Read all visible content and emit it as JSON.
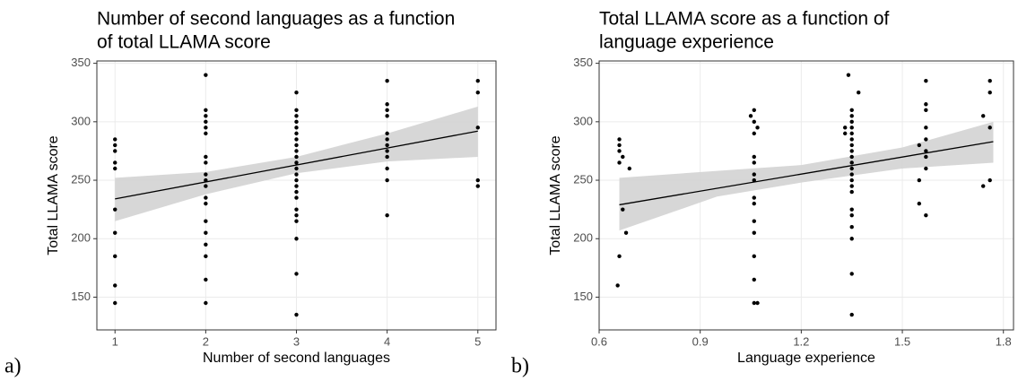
{
  "chart_data": [
    {
      "type": "scatter",
      "panel_label": "a)",
      "title": [
        "Number of second languages as a function",
        "of total LLAMA score"
      ],
      "x_label": "Number of second languages",
      "y_label": "Total LLAMA score",
      "xlim": [
        0.8,
        5.2
      ],
      "ylim": [
        122,
        352
      ],
      "xticks": [
        1,
        2,
        3,
        4,
        5
      ],
      "yticks": [
        150,
        200,
        250,
        300,
        350
      ],
      "grid": true,
      "color": "#000000",
      "x": [
        1,
        1,
        1,
        1,
        1,
        1,
        1,
        1,
        1,
        1,
        2,
        2,
        2,
        2,
        2,
        2,
        2,
        2,
        2,
        2,
        2,
        2,
        2,
        2,
        2,
        2,
        2,
        2,
        2,
        3,
        3,
        3,
        3,
        3,
        3,
        3,
        3,
        3,
        3,
        3,
        3,
        3,
        3,
        3,
        3,
        3,
        3,
        3,
        3,
        3,
        3,
        3,
        4,
        4,
        4,
        4,
        4,
        4,
        4,
        4,
        4,
        4,
        4,
        4,
        5,
        5,
        5,
        5,
        5
      ],
      "y": [
        285,
        280,
        275,
        265,
        260,
        225,
        205,
        185,
        160,
        145,
        340,
        310,
        305,
        300,
        295,
        290,
        270,
        265,
        255,
        250,
        245,
        235,
        230,
        215,
        205,
        195,
        185,
        165,
        145,
        325,
        310,
        305,
        300,
        295,
        290,
        285,
        280,
        275,
        270,
        265,
        260,
        255,
        250,
        245,
        240,
        235,
        225,
        220,
        215,
        200,
        170,
        135,
        335,
        315,
        310,
        305,
        290,
        285,
        280,
        275,
        270,
        260,
        250,
        220,
        335,
        325,
        295,
        250,
        245
      ],
      "fit": {
        "x": [
          1,
          5
        ],
        "y": [
          234,
          292
        ],
        "color": "#000000"
      },
      "band": {
        "x": [
          1,
          2,
          3,
          4,
          5
        ],
        "lower": [
          215,
          238,
          256,
          266,
          270
        ],
        "upper": [
          252,
          257,
          270,
          290,
          313
        ],
        "color": "#d3d3d3"
      }
    },
    {
      "type": "scatter",
      "panel_label": "b)",
      "title": [
        "Total LLAMA score as a function of",
        "language experience"
      ],
      "x_label": "Language experience",
      "y_label": "Total LLAMA score",
      "xlim": [
        0.6,
        1.83
      ],
      "ylim": [
        122,
        352
      ],
      "xticks": [
        0.6,
        0.9,
        1.2,
        1.5,
        1.8
      ],
      "yticks": [
        150,
        200,
        250,
        300,
        350
      ],
      "grid": true,
      "color": "#000000",
      "x": [
        0.66,
        0.66,
        0.66,
        0.67,
        0.66,
        0.655,
        0.66,
        0.67,
        0.68,
        0.69,
        1.05,
        1.06,
        1.06,
        1.06,
        1.06,
        1.06,
        1.06,
        1.06,
        1.06,
        1.06,
        1.06,
        1.06,
        1.06,
        1.06,
        1.06,
        1.07,
        1.07,
        1.34,
        1.35,
        1.35,
        1.35,
        1.35,
        1.35,
        1.35,
        1.35,
        1.35,
        1.35,
        1.35,
        1.35,
        1.35,
        1.35,
        1.35,
        1.35,
        1.35,
        1.35,
        1.35,
        1.35,
        1.35,
        1.35,
        1.37,
        1.33,
        1.33,
        1.55,
        1.55,
        1.55,
        1.57,
        1.57,
        1.57,
        1.57,
        1.57,
        1.57,
        1.57,
        1.57,
        1.57,
        1.74,
        1.74,
        1.76,
        1.76,
        1.76,
        1.76
      ],
      "y": [
        285,
        280,
        275,
        270,
        265,
        160,
        185,
        225,
        205,
        260,
        305,
        310,
        300,
        290,
        270,
        265,
        255,
        250,
        235,
        230,
        215,
        205,
        185,
        165,
        145,
        295,
        145,
        340,
        310,
        305,
        300,
        295,
        290,
        285,
        280,
        275,
        270,
        265,
        260,
        255,
        250,
        245,
        240,
        225,
        220,
        210,
        200,
        170,
        135,
        325,
        295,
        290,
        280,
        250,
        230,
        335,
        315,
        310,
        295,
        285,
        275,
        270,
        260,
        220,
        305,
        245,
        335,
        325,
        295,
        250
      ],
      "fit": {
        "x": [
          0.66,
          1.77
        ],
        "y": [
          229,
          283
        ],
        "color": "#000000"
      },
      "band": {
        "x": [
          0.66,
          0.95,
          1.2,
          1.5,
          1.77
        ],
        "lower": [
          207,
          236,
          248,
          260,
          265
        ],
        "upper": [
          252,
          258,
          263,
          278,
          300
        ],
        "color": "#d3d3d3"
      }
    }
  ]
}
